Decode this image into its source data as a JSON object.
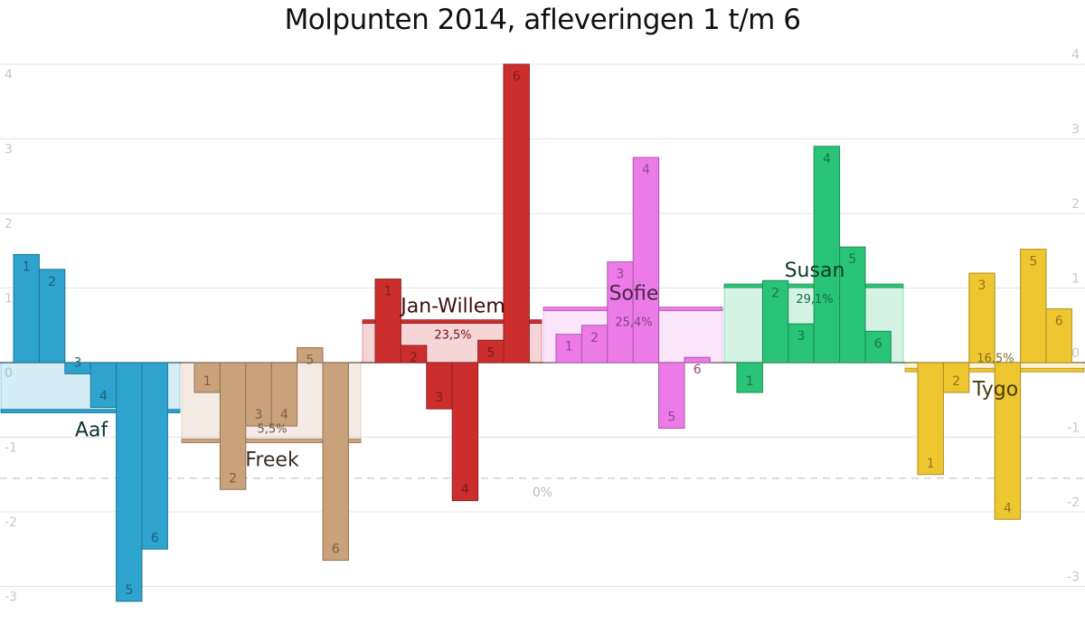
{
  "title": "Molpunten 2014, afleveringen 1 t/m 6",
  "chart_data": {
    "type": "bar",
    "title": "Molpunten 2014, afleveringen 1 t/m 6",
    "ylim": [
      -3.2,
      4.0
    ],
    "yticks": [
      -3,
      -2,
      -1,
      0,
      1,
      2,
      3,
      4
    ],
    "right_yticks": [
      -3,
      -2,
      -1,
      0,
      1,
      2,
      3,
      4
    ],
    "grid": true,
    "reference_line": {
      "value": -1.55,
      "label": "0%"
    },
    "episodes": [
      "1",
      "2",
      "3",
      "4",
      "5",
      "6"
    ],
    "series": [
      {
        "name": "Aaf",
        "color": "#2ea3ce",
        "values": [
          1.45,
          1.25,
          -0.15,
          -0.6,
          -3.2,
          -2.5
        ],
        "mean": -0.65,
        "percent": ""
      },
      {
        "name": "Freek",
        "color": "#c9a17a",
        "values": [
          -0.4,
          -1.7,
          -0.85,
          -0.85,
          0.2,
          -2.65
        ],
        "mean": -1.05,
        "percent": "5,5%"
      },
      {
        "name": "Jan-Willem",
        "color": "#cc2e2e",
        "values": [
          1.12,
          0.23,
          -0.62,
          -1.85,
          0.3,
          4.0
        ],
        "mean": 0.55,
        "percent": "23,5%"
      },
      {
        "name": "Sofie",
        "color": "#ec7be8",
        "values": [
          0.38,
          0.5,
          1.35,
          2.75,
          -0.88,
          0.07
        ],
        "mean": 0.72,
        "percent": "25,4%"
      },
      {
        "name": "Susan",
        "color": "#29c478",
        "values": [
          -0.4,
          1.1,
          0.52,
          2.9,
          1.55,
          0.42
        ],
        "mean": 1.03,
        "percent": "29,1%"
      },
      {
        "name": "Tygo",
        "color": "#eec630",
        "values": [
          -1.5,
          -0.4,
          1.2,
          -2.1,
          1.52,
          0.72
        ],
        "mean": -0.1,
        "percent": "16,5%"
      }
    ]
  }
}
